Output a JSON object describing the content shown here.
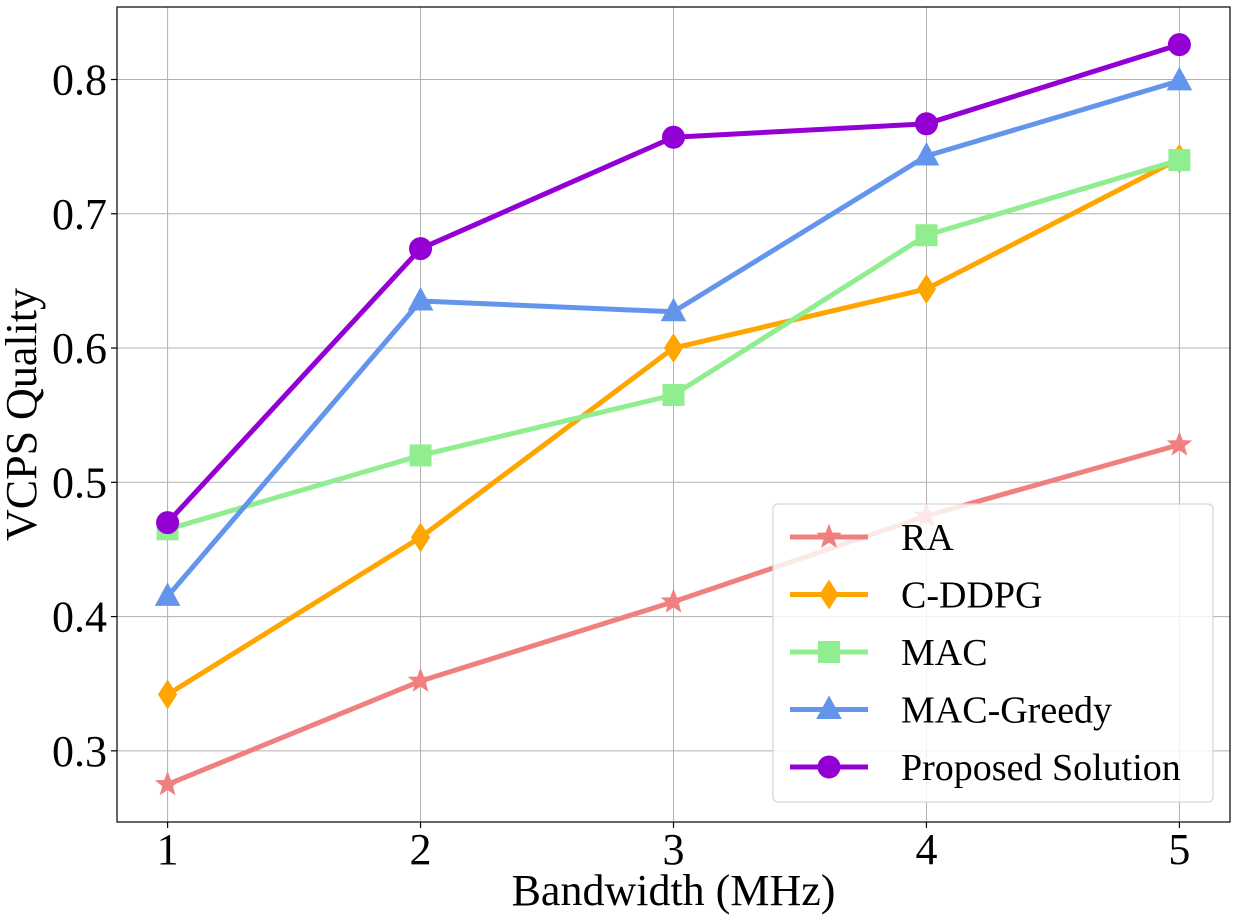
{
  "chart_data": {
    "type": "line",
    "xlabel": "Bandwidth (MHz)",
    "ylabel": "VCPS Quality",
    "x": [
      1,
      2,
      3,
      4,
      5
    ],
    "x_tick_labels": [
      "1",
      "2",
      "3",
      "4",
      "5"
    ],
    "xlim": [
      0.8,
      5.2
    ],
    "ylim": [
      0.247,
      0.854
    ],
    "y_ticks": [
      0.3,
      0.4,
      0.5,
      0.6,
      0.7,
      0.8
    ],
    "y_tick_labels": [
      "0.3",
      "0.4",
      "0.5",
      "0.6",
      "0.7",
      "0.8"
    ],
    "grid": true,
    "legend_position": "lower-right",
    "series": [
      {
        "name": "RA",
        "marker": "star",
        "color": "#F08080",
        "values": [
          0.275,
          0.352,
          0.411,
          0.475,
          0.528
        ]
      },
      {
        "name": "C-DDPG",
        "marker": "diamond",
        "color": "#FFA500",
        "values": [
          0.342,
          0.459,
          0.6,
          0.644,
          0.741
        ]
      },
      {
        "name": "MAC",
        "marker": "square",
        "color": "#90EE90",
        "values": [
          0.465,
          0.52,
          0.565,
          0.684,
          0.74
        ]
      },
      {
        "name": "MAC-Greedy",
        "marker": "triangle",
        "color": "#6495ED",
        "values": [
          0.415,
          0.635,
          0.627,
          0.743,
          0.799
        ]
      },
      {
        "name": "Proposed Solution",
        "marker": "circle",
        "color": "#9400D3",
        "values": [
          0.47,
          0.674,
          0.757,
          0.767,
          0.826
        ]
      }
    ]
  }
}
